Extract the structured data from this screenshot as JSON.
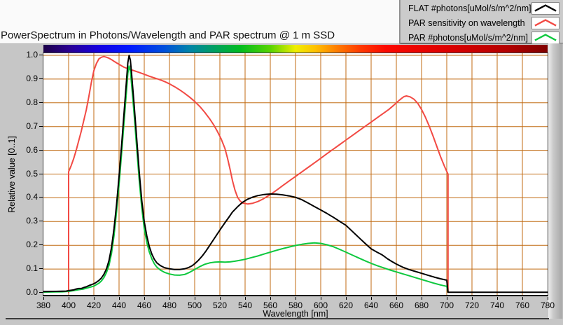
{
  "header": {
    "title": "PowerSpectrum in Photons/Wavelength and PAR spectrum @ 1 m SSD"
  },
  "legend": {
    "items": [
      {
        "label": "FLAT #photons[uMol/s/m^2/nm]",
        "color": "#000000"
      },
      {
        "label": "PAR sensitivity on wavelength",
        "color": "#f24a44"
      },
      {
        "label": "PAR #photons[uMol/s/m^2/nm]",
        "color": "#0dc83e"
      }
    ]
  },
  "colorbar": {
    "description": "visible-spectrum-gradient-bar",
    "stops": [
      [
        0.0,
        "#1c0048"
      ],
      [
        0.05,
        "#2a0090"
      ],
      [
        0.11,
        "#1500e0"
      ],
      [
        0.17,
        "#0018ff"
      ],
      [
        0.24,
        "#0050dc"
      ],
      [
        0.29,
        "#0084a8"
      ],
      [
        0.34,
        "#00a060"
      ],
      [
        0.39,
        "#00bc20"
      ],
      [
        0.45,
        "#58d400"
      ],
      [
        0.5,
        "#f0ee00"
      ],
      [
        0.54,
        "#ffc000"
      ],
      [
        0.58,
        "#ff8000"
      ],
      [
        0.63,
        "#ff3800"
      ],
      [
        0.68,
        "#fc0800"
      ],
      [
        0.8,
        "#dd0000"
      ],
      [
        0.92,
        "#b40000"
      ],
      [
        1.0,
        "#800000"
      ]
    ]
  },
  "chart_data": {
    "type": "line",
    "title": "PowerSpectrum in Photons/Wavelength and PAR spectrum @ 1 m SSD",
    "xlabel": "Wavelength [nm]",
    "ylabel": "Relative value [0..1]",
    "xlim": [
      380,
      780
    ],
    "ylim": [
      0,
      1
    ],
    "grid": true,
    "grid_color": "#c06a10",
    "legend_position": "top-right-outside",
    "x_ticks": [
      380,
      400,
      420,
      440,
      460,
      480,
      500,
      520,
      540,
      560,
      580,
      600,
      620,
      640,
      660,
      680,
      700,
      720,
      740,
      760,
      780
    ],
    "x_tick_labels": [
      "380",
      "400",
      "420",
      "440",
      "460",
      "480",
      "500",
      "520",
      "540",
      "560",
      "580",
      "600",
      "620",
      "640",
      "660",
      "680",
      "700",
      "720",
      "740",
      "760",
      "780"
    ],
    "y_tick_labels": [
      "0.0",
      "0.1",
      "0.2",
      "0.3",
      "0.4",
      "0.5",
      "0.6",
      "0.7",
      "0.8",
      "0.9",
      "1.0"
    ],
    "series": [
      {
        "name": "FLAT #photons[uMol/s/m^2/nm]",
        "color": "#000000",
        "points": [
          [
            380,
            0.005
          ],
          [
            390,
            0.006
          ],
          [
            398,
            0.007
          ],
          [
            400,
            0.009
          ],
          [
            404,
            0.012
          ],
          [
            406,
            0.016
          ],
          [
            408,
            0.018
          ],
          [
            410,
            0.018
          ],
          [
            412,
            0.022
          ],
          [
            414,
            0.025
          ],
          [
            416,
            0.03
          ],
          [
            418,
            0.034
          ],
          [
            420,
            0.038
          ],
          [
            422,
            0.044
          ],
          [
            424,
            0.052
          ],
          [
            426,
            0.062
          ],
          [
            428,
            0.078
          ],
          [
            430,
            0.1
          ],
          [
            432,
            0.135
          ],
          [
            434,
            0.19
          ],
          [
            436,
            0.27
          ],
          [
            438,
            0.37
          ],
          [
            440,
            0.49
          ],
          [
            442,
            0.62
          ],
          [
            444,
            0.76
          ],
          [
            446,
            0.9
          ],
          [
            447,
            0.97
          ],
          [
            448,
            1.0
          ],
          [
            449,
            0.98
          ],
          [
            450,
            0.92
          ],
          [
            452,
            0.79
          ],
          [
            454,
            0.65
          ],
          [
            456,
            0.51
          ],
          [
            458,
            0.39
          ],
          [
            460,
            0.3
          ],
          [
            462,
            0.24
          ],
          [
            464,
            0.195
          ],
          [
            466,
            0.163
          ],
          [
            468,
            0.141
          ],
          [
            470,
            0.126
          ],
          [
            473,
            0.114
          ],
          [
            476,
            0.106
          ],
          [
            480,
            0.101
          ],
          [
            484,
            0.098
          ],
          [
            488,
            0.098
          ],
          [
            492,
            0.101
          ],
          [
            495,
            0.106
          ],
          [
            498,
            0.114
          ],
          [
            500,
            0.122
          ],
          [
            503,
            0.137
          ],
          [
            506,
            0.155
          ],
          [
            509,
            0.176
          ],
          [
            512,
            0.2
          ],
          [
            515,
            0.224
          ],
          [
            518,
            0.248
          ],
          [
            521,
            0.272
          ],
          [
            524,
            0.295
          ],
          [
            527,
            0.317
          ],
          [
            530,
            0.34
          ],
          [
            534,
            0.362
          ],
          [
            538,
            0.381
          ],
          [
            542,
            0.394
          ],
          [
            546,
            0.403
          ],
          [
            550,
            0.409
          ],
          [
            555,
            0.414
          ],
          [
            560,
            0.416
          ],
          [
            565,
            0.415
          ],
          [
            570,
            0.412
          ],
          [
            575,
            0.408
          ],
          [
            580,
            0.402
          ],
          [
            585,
            0.392
          ],
          [
            590,
            0.378
          ],
          [
            595,
            0.363
          ],
          [
            600,
            0.349
          ],
          [
            605,
            0.334
          ],
          [
            610,
            0.318
          ],
          [
            615,
            0.301
          ],
          [
            620,
            0.284
          ],
          [
            625,
            0.259
          ],
          [
            630,
            0.234
          ],
          [
            635,
            0.209
          ],
          [
            640,
            0.185
          ],
          [
            645,
            0.17
          ],
          [
            648,
            0.162
          ],
          [
            650,
            0.155
          ],
          [
            653,
            0.143
          ],
          [
            656,
            0.133
          ],
          [
            660,
            0.121
          ],
          [
            665,
            0.108
          ],
          [
            670,
            0.098
          ],
          [
            675,
            0.09
          ],
          [
            680,
            0.082
          ],
          [
            685,
            0.074
          ],
          [
            690,
            0.066
          ],
          [
            695,
            0.059
          ],
          [
            700,
            0.053
          ],
          [
            701,
            0.002
          ],
          [
            780,
            0.002
          ]
        ]
      },
      {
        "name": "PAR sensitivity on wavelength",
        "color": "#f24a44",
        "points": [
          [
            400,
            0.0
          ],
          [
            400,
            0.51
          ],
          [
            402,
            0.535
          ],
          [
            404,
            0.565
          ],
          [
            406,
            0.6
          ],
          [
            408,
            0.64
          ],
          [
            410,
            0.68
          ],
          [
            412,
            0.725
          ],
          [
            414,
            0.77
          ],
          [
            416,
            0.825
          ],
          [
            418,
            0.885
          ],
          [
            420,
            0.935
          ],
          [
            422,
            0.965
          ],
          [
            424,
            0.985
          ],
          [
            426,
            0.992
          ],
          [
            428,
            0.995
          ],
          [
            430,
            0.992
          ],
          [
            432,
            0.988
          ],
          [
            434,
            0.982
          ],
          [
            436,
            0.975
          ],
          [
            440,
            0.962
          ],
          [
            444,
            0.95
          ],
          [
            448,
            0.942
          ],
          [
            452,
            0.935
          ],
          [
            456,
            0.928
          ],
          [
            460,
            0.92
          ],
          [
            464,
            0.912
          ],
          [
            468,
            0.905
          ],
          [
            472,
            0.898
          ],
          [
            476,
            0.89
          ],
          [
            480,
            0.88
          ],
          [
            484,
            0.868
          ],
          [
            488,
            0.855
          ],
          [
            492,
            0.84
          ],
          [
            496,
            0.824
          ],
          [
            500,
            0.806
          ],
          [
            504,
            0.785
          ],
          [
            508,
            0.76
          ],
          [
            512,
            0.732
          ],
          [
            515,
            0.708
          ],
          [
            518,
            0.68
          ],
          [
            521,
            0.648
          ],
          [
            524,
            0.608
          ],
          [
            526,
            0.568
          ],
          [
            528,
            0.522
          ],
          [
            530,
            0.472
          ],
          [
            532,
            0.432
          ],
          [
            534,
            0.403
          ],
          [
            536,
            0.387
          ],
          [
            538,
            0.378
          ],
          [
            542,
            0.374
          ],
          [
            546,
            0.377
          ],
          [
            550,
            0.384
          ],
          [
            554,
            0.394
          ],
          [
            558,
            0.407
          ],
          [
            562,
            0.421
          ],
          [
            566,
            0.436
          ],
          [
            570,
            0.452
          ],
          [
            575,
            0.471
          ],
          [
            580,
            0.49
          ],
          [
            585,
            0.509
          ],
          [
            590,
            0.528
          ],
          [
            595,
            0.547
          ],
          [
            600,
            0.566
          ],
          [
            605,
            0.586
          ],
          [
            610,
            0.605
          ],
          [
            615,
            0.624
          ],
          [
            620,
            0.643
          ],
          [
            625,
            0.662
          ],
          [
            630,
            0.681
          ],
          [
            635,
            0.7
          ],
          [
            640,
            0.719
          ],
          [
            645,
            0.738
          ],
          [
            650,
            0.757
          ],
          [
            654,
            0.772
          ],
          [
            658,
            0.79
          ],
          [
            661,
            0.805
          ],
          [
            664,
            0.818
          ],
          [
            666,
            0.826
          ],
          [
            668,
            0.829
          ],
          [
            671,
            0.825
          ],
          [
            674,
            0.815
          ],
          [
            677,
            0.798
          ],
          [
            680,
            0.772
          ],
          [
            683,
            0.74
          ],
          [
            686,
            0.703
          ],
          [
            689,
            0.662
          ],
          [
            692,
            0.618
          ],
          [
            695,
            0.574
          ],
          [
            698,
            0.535
          ],
          [
            700,
            0.511
          ],
          [
            701,
            0.5
          ],
          [
            701,
            0.0
          ]
        ]
      },
      {
        "name": "PAR #photons[uMol/s/m^2/nm]",
        "color": "#0dc83e",
        "points": [
          [
            380,
            0.003
          ],
          [
            395,
            0.004
          ],
          [
            400,
            0.006
          ],
          [
            404,
            0.009
          ],
          [
            408,
            0.013
          ],
          [
            412,
            0.016
          ],
          [
            416,
            0.022
          ],
          [
            420,
            0.028
          ],
          [
            424,
            0.04
          ],
          [
            426,
            0.05
          ],
          [
            428,
            0.064
          ],
          [
            430,
            0.085
          ],
          [
            432,
            0.115
          ],
          [
            434,
            0.165
          ],
          [
            436,
            0.24
          ],
          [
            438,
            0.34
          ],
          [
            440,
            0.455
          ],
          [
            442,
            0.585
          ],
          [
            444,
            0.72
          ],
          [
            446,
            0.855
          ],
          [
            447,
            0.925
          ],
          [
            448,
            0.955
          ],
          [
            449,
            0.935
          ],
          [
            450,
            0.875
          ],
          [
            452,
            0.75
          ],
          [
            454,
            0.61
          ],
          [
            456,
            0.475
          ],
          [
            458,
            0.36
          ],
          [
            460,
            0.27
          ],
          [
            462,
            0.213
          ],
          [
            464,
            0.172
          ],
          [
            466,
            0.143
          ],
          [
            468,
            0.122
          ],
          [
            470,
            0.108
          ],
          [
            473,
            0.095
          ],
          [
            476,
            0.086
          ],
          [
            480,
            0.079
          ],
          [
            484,
            0.075
          ],
          [
            488,
            0.074
          ],
          [
            492,
            0.077
          ],
          [
            496,
            0.086
          ],
          [
            500,
            0.098
          ],
          [
            504,
            0.11
          ],
          [
            508,
            0.12
          ],
          [
            512,
            0.126
          ],
          [
            516,
            0.129
          ],
          [
            520,
            0.13
          ],
          [
            524,
            0.129
          ],
          [
            528,
            0.13
          ],
          [
            532,
            0.133
          ],
          [
            536,
            0.137
          ],
          [
            540,
            0.141
          ],
          [
            545,
            0.148
          ],
          [
            550,
            0.155
          ],
          [
            555,
            0.163
          ],
          [
            560,
            0.171
          ],
          [
            565,
            0.179
          ],
          [
            570,
            0.186
          ],
          [
            575,
            0.193
          ],
          [
            580,
            0.199
          ],
          [
            585,
            0.204
          ],
          [
            590,
            0.208
          ],
          [
            595,
            0.21
          ],
          [
            600,
            0.208
          ],
          [
            605,
            0.202
          ],
          [
            610,
            0.194
          ],
          [
            615,
            0.183
          ],
          [
            620,
            0.171
          ],
          [
            625,
            0.159
          ],
          [
            630,
            0.147
          ],
          [
            635,
            0.135
          ],
          [
            640,
            0.124
          ],
          [
            645,
            0.114
          ],
          [
            650,
            0.105
          ],
          [
            655,
            0.096
          ],
          [
            660,
            0.088
          ],
          [
            665,
            0.08
          ],
          [
            670,
            0.072
          ],
          [
            675,
            0.064
          ],
          [
            680,
            0.056
          ],
          [
            685,
            0.048
          ],
          [
            690,
            0.04
          ],
          [
            695,
            0.033
          ],
          [
            700,
            0.027
          ],
          [
            701,
            0.002
          ]
        ]
      }
    ]
  }
}
